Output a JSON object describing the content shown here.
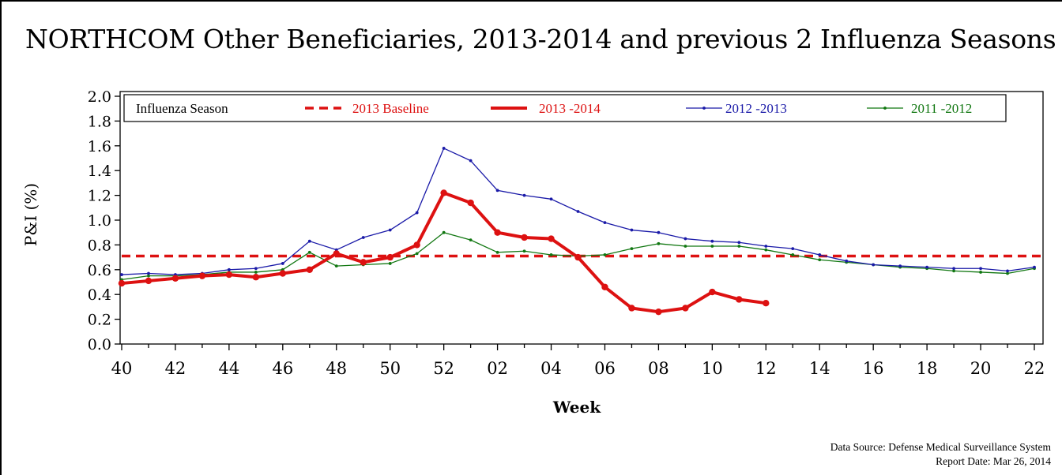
{
  "chart_data": {
    "type": "line",
    "title": "NORTHCOM Other Beneficiaries, 2013-2014 and previous 2 Influenza Seasons",
    "xlabel": "Week",
    "ylabel": "P&I (%)",
    "ylim": [
      0,
      2.0
    ],
    "yticks": [
      "0.0",
      "0.2",
      "0.4",
      "0.6",
      "0.8",
      "1.0",
      "1.2",
      "1.4",
      "1.6",
      "1.8",
      "2.0"
    ],
    "weeks": [
      "40",
      "41",
      "42",
      "43",
      "44",
      "45",
      "46",
      "47",
      "48",
      "49",
      "50",
      "51",
      "52",
      "01",
      "02",
      "03",
      "04",
      "05",
      "06",
      "07",
      "08",
      "09",
      "10",
      "11",
      "12",
      "13",
      "14",
      "15",
      "16",
      "17",
      "18",
      "19",
      "20",
      "21",
      "22"
    ],
    "xtick_labels": [
      "40",
      "42",
      "44",
      "46",
      "48",
      "50",
      "52",
      "02",
      "04",
      "06",
      "08",
      "10",
      "12",
      "14",
      "16",
      "18",
      "20",
      "22"
    ],
    "legend": {
      "title": "Influenza Season",
      "placement": "top, inside plot",
      "entries": [
        "2013 Baseline",
        "2013 -2014",
        "2012 -2013",
        "2011 -2012"
      ]
    },
    "baseline": {
      "name": "2013 Baseline",
      "value": 0.71,
      "color": "#dd1111",
      "style": "dashed"
    },
    "series": [
      {
        "name": "2013 -2014",
        "color": "#dd1111",
        "width": 4,
        "values": [
          0.49,
          0.51,
          0.53,
          0.55,
          0.56,
          0.54,
          0.57,
          0.6,
          0.73,
          0.66,
          0.7,
          0.8,
          1.22,
          1.14,
          0.9,
          0.86,
          0.85,
          0.7,
          0.46,
          0.29,
          0.26,
          0.29,
          0.42,
          0.36,
          0.33,
          null,
          null,
          null,
          null,
          null,
          null,
          null,
          null,
          null,
          null
        ]
      },
      {
        "name": "2012 -2013",
        "color": "#1a1aa8",
        "width": 1.3,
        "values": [
          0.56,
          0.57,
          0.56,
          0.57,
          0.6,
          0.61,
          0.65,
          0.83,
          0.76,
          0.86,
          0.92,
          1.06,
          1.58,
          1.48,
          1.24,
          1.2,
          1.17,
          1.07,
          0.98,
          0.92,
          0.9,
          0.85,
          0.83,
          0.82,
          0.79,
          0.77,
          0.72,
          0.67,
          0.64,
          0.63,
          0.62,
          0.61,
          0.61,
          0.59,
          0.62
        ]
      },
      {
        "name": "2011 -2012",
        "color": "#117711",
        "width": 1.3,
        "values": [
          0.52,
          0.55,
          0.55,
          0.56,
          0.58,
          0.58,
          0.6,
          0.74,
          0.63,
          0.64,
          0.65,
          0.73,
          0.9,
          0.84,
          0.74,
          0.75,
          0.72,
          0.71,
          0.72,
          0.77,
          0.81,
          0.79,
          0.79,
          0.79,
          0.76,
          0.72,
          0.68,
          0.66,
          0.64,
          0.62,
          0.61,
          0.59,
          0.58,
          0.57,
          0.61
        ]
      }
    ]
  },
  "footer": {
    "source": "Data Source: Defense Medical Surveillance System",
    "report_date": "Report Date: Mar 26, 2014"
  }
}
